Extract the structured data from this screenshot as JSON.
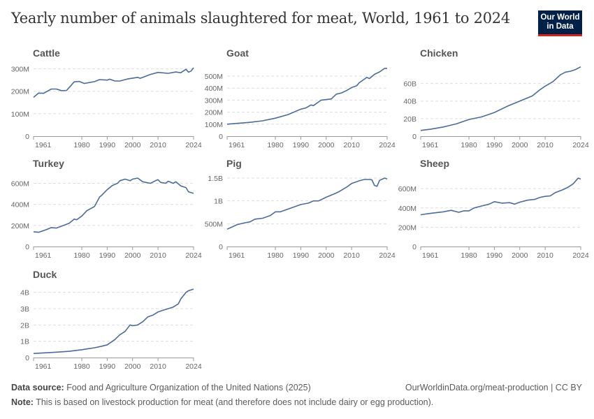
{
  "header": {
    "title": "Yearly number of animals slaughtered for meat, World, 1961 to 2024",
    "logo": "Our World in Data"
  },
  "footer": {
    "source_label": "Data source:",
    "source": "Food and Agriculture Organization of the United Nations (2025)",
    "url": "OurWorldinData.org/meat-production | CC BY",
    "note_label": "Note:",
    "note": "This is based on livestock production for meat (and therefore does not include dairy or egg production)."
  },
  "colors": {
    "line": "#4c6a9c",
    "grid": "#dddddd",
    "text": "#666666"
  },
  "chart_data": [
    {
      "type": "line",
      "title": "Cattle",
      "unit": "million",
      "ylim": [
        0,
        305
      ],
      "yticks": [
        0,
        100,
        200,
        300
      ],
      "ytick_labels": [
        "0",
        "100M",
        "200M",
        "300M"
      ],
      "xticks": [
        1961,
        1980,
        1990,
        2000,
        2010,
        2024
      ],
      "points": [
        [
          1961,
          173
        ],
        [
          1963,
          192
        ],
        [
          1965,
          191
        ],
        [
          1968,
          210
        ],
        [
          1970,
          210
        ],
        [
          1972,
          203
        ],
        [
          1974,
          204
        ],
        [
          1977,
          242
        ],
        [
          1979,
          244
        ],
        [
          1981,
          235
        ],
        [
          1985,
          243
        ],
        [
          1987,
          252
        ],
        [
          1990,
          250
        ],
        [
          1991,
          254
        ],
        [
          1993,
          246
        ],
        [
          1995,
          246
        ],
        [
          1998,
          255
        ],
        [
          2002,
          262
        ],
        [
          2003,
          258
        ],
        [
          2007,
          275
        ],
        [
          2010,
          284
        ],
        [
          2014,
          280
        ],
        [
          2017,
          286
        ],
        [
          2019,
          283
        ],
        [
          2021,
          298
        ],
        [
          2022,
          285
        ],
        [
          2023,
          290
        ],
        [
          2024,
          305
        ]
      ]
    },
    {
      "type": "line",
      "title": "Goat",
      "unit": "million",
      "ylim": [
        0,
        570
      ],
      "yticks": [
        0,
        100,
        200,
        300,
        400,
        500
      ],
      "ytick_labels": [
        "0",
        "100M",
        "200M",
        "300M",
        "400M",
        "500M"
      ],
      "xticks": [
        1961,
        1980,
        1990,
        2000,
        2010,
        2024
      ],
      "points": [
        [
          1961,
          100
        ],
        [
          1970,
          115
        ],
        [
          1975,
          128
        ],
        [
          1980,
          150
        ],
        [
          1985,
          180
        ],
        [
          1990,
          225
        ],
        [
          1992,
          235
        ],
        [
          1994,
          260
        ],
        [
          1995,
          255
        ],
        [
          1998,
          300
        ],
        [
          2000,
          305
        ],
        [
          2002,
          310
        ],
        [
          2004,
          350
        ],
        [
          2006,
          360
        ],
        [
          2008,
          380
        ],
        [
          2010,
          405
        ],
        [
          2012,
          420
        ],
        [
          2013,
          445
        ],
        [
          2016,
          490
        ],
        [
          2017,
          480
        ],
        [
          2019,
          515
        ],
        [
          2021,
          535
        ],
        [
          2023,
          565
        ],
        [
          2024,
          565
        ]
      ]
    },
    {
      "type": "line",
      "title": "Chicken",
      "unit": "billion",
      "ylim": [
        0,
        78
      ],
      "yticks": [
        0,
        20,
        40,
        60
      ],
      "ytick_labels": [
        "0",
        "20B",
        "40B",
        "60B"
      ],
      "xticks": [
        1961,
        1980,
        1990,
        2000,
        2010,
        2024
      ],
      "points": [
        [
          1961,
          6.5
        ],
        [
          1965,
          8
        ],
        [
          1970,
          10.5
        ],
        [
          1975,
          14
        ],
        [
          1980,
          19
        ],
        [
          1985,
          22
        ],
        [
          1990,
          27
        ],
        [
          1995,
          34
        ],
        [
          2000,
          40
        ],
        [
          2005,
          46
        ],
        [
          2008,
          53
        ],
        [
          2010,
          57
        ],
        [
          2013,
          62
        ],
        [
          2016,
          70
        ],
        [
          2018,
          73
        ],
        [
          2020,
          74
        ],
        [
          2022,
          76
        ],
        [
          2024,
          79
        ]
      ]
    },
    {
      "type": "line",
      "title": "Turkey",
      "unit": "million",
      "ylim": [
        0,
        650
      ],
      "yticks": [
        0,
        200,
        400,
        600
      ],
      "ytick_labels": [
        "0",
        "200M",
        "400M",
        "600M"
      ],
      "xticks": [
        1961,
        1980,
        1990,
        2000,
        2010,
        2024
      ],
      "points": [
        [
          1961,
          140
        ],
        [
          1963,
          135
        ],
        [
          1966,
          160
        ],
        [
          1968,
          180
        ],
        [
          1970,
          175
        ],
        [
          1975,
          220
        ],
        [
          1977,
          260
        ],
        [
          1978,
          255
        ],
        [
          1980,
          290
        ],
        [
          1982,
          340
        ],
        [
          1985,
          380
        ],
        [
          1987,
          470
        ],
        [
          1988,
          490
        ],
        [
          1990,
          540
        ],
        [
          1992,
          580
        ],
        [
          1994,
          600
        ],
        [
          1995,
          625
        ],
        [
          1997,
          640
        ],
        [
          1999,
          625
        ],
        [
          2000,
          640
        ],
        [
          2002,
          650
        ],
        [
          2004,
          615
        ],
        [
          2007,
          600
        ],
        [
          2009,
          625
        ],
        [
          2010,
          635
        ],
        [
          2011,
          610
        ],
        [
          2013,
          600
        ],
        [
          2014,
          620
        ],
        [
          2016,
          600
        ],
        [
          2017,
          615
        ],
        [
          2019,
          575
        ],
        [
          2021,
          560
        ],
        [
          2022,
          520
        ],
        [
          2024,
          505
        ]
      ]
    },
    {
      "type": "line",
      "title": "Pig",
      "unit": "billion",
      "ylim": [
        0,
        1.5
      ],
      "yticks": [
        0,
        0.5,
        1,
        1.5
      ],
      "ytick_labels": [
        "0",
        "500M",
        "1B",
        "1.5B"
      ],
      "xticks": [
        1961,
        1980,
        1990,
        2000,
        2010,
        2024
      ],
      "points": [
        [
          1961,
          0.38
        ],
        [
          1965,
          0.48
        ],
        [
          1968,
          0.52
        ],
        [
          1970,
          0.54
        ],
        [
          1972,
          0.6
        ],
        [
          1975,
          0.62
        ],
        [
          1978,
          0.68
        ],
        [
          1980,
          0.76
        ],
        [
          1982,
          0.76
        ],
        [
          1985,
          0.82
        ],
        [
          1988,
          0.88
        ],
        [
          1990,
          0.92
        ],
        [
          1993,
          0.95
        ],
        [
          1995,
          1.0
        ],
        [
          1997,
          1.0
        ],
        [
          2000,
          1.08
        ],
        [
          2003,
          1.15
        ],
        [
          2005,
          1.2
        ],
        [
          2008,
          1.3
        ],
        [
          2010,
          1.38
        ],
        [
          2013,
          1.44
        ],
        [
          2015,
          1.47
        ],
        [
          2017,
          1.47
        ],
        [
          2018,
          1.46
        ],
        [
          2019,
          1.34
        ],
        [
          2020,
          1.32
        ],
        [
          2021,
          1.45
        ],
        [
          2023,
          1.5
        ],
        [
          2024,
          1.48
        ]
      ]
    },
    {
      "type": "line",
      "title": "Sheep",
      "unit": "million",
      "ylim": [
        0,
        710
      ],
      "yticks": [
        0,
        200,
        400,
        600
      ],
      "ytick_labels": [
        "0",
        "200M",
        "400M",
        "600M"
      ],
      "xticks": [
        1961,
        1980,
        1990,
        2000,
        2010,
        2024
      ],
      "points": [
        [
          1961,
          330
        ],
        [
          1965,
          345
        ],
        [
          1970,
          360
        ],
        [
          1973,
          375
        ],
        [
          1976,
          355
        ],
        [
          1978,
          370
        ],
        [
          1980,
          370
        ],
        [
          1982,
          400
        ],
        [
          1985,
          420
        ],
        [
          1988,
          440
        ],
        [
          1990,
          465
        ],
        [
          1993,
          450
        ],
        [
          1996,
          455
        ],
        [
          1998,
          440
        ],
        [
          2000,
          460
        ],
        [
          2003,
          480
        ],
        [
          2006,
          490
        ],
        [
          2008,
          510
        ],
        [
          2010,
          520
        ],
        [
          2012,
          525
        ],
        [
          2014,
          560
        ],
        [
          2017,
          590
        ],
        [
          2019,
          615
        ],
        [
          2021,
          650
        ],
        [
          2023,
          710
        ],
        [
          2024,
          700
        ]
      ]
    },
    {
      "type": "line",
      "title": "Duck",
      "unit": "billion",
      "ylim": [
        0,
        4.2
      ],
      "yticks": [
        0,
        1,
        2,
        3,
        4
      ],
      "ytick_labels": [
        "0",
        "1B",
        "2B",
        "3B",
        "4B"
      ],
      "xticks": [
        1961,
        1980,
        1990,
        2000,
        2010,
        2024
      ],
      "points": [
        [
          1961,
          0.25
        ],
        [
          1970,
          0.33
        ],
        [
          1975,
          0.38
        ],
        [
          1980,
          0.48
        ],
        [
          1985,
          0.6
        ],
        [
          1988,
          0.7
        ],
        [
          1990,
          0.78
        ],
        [
          1993,
          1.1
        ],
        [
          1995,
          1.4
        ],
        [
          1997,
          1.6
        ],
        [
          1999,
          2.0
        ],
        [
          2000,
          1.95
        ],
        [
          2002,
          2.0
        ],
        [
          2004,
          2.2
        ],
        [
          2006,
          2.5
        ],
        [
          2008,
          2.6
        ],
        [
          2010,
          2.8
        ],
        [
          2012,
          2.9
        ],
        [
          2014,
          3.0
        ],
        [
          2016,
          3.1
        ],
        [
          2018,
          3.3
        ],
        [
          2019,
          3.6
        ],
        [
          2021,
          4.0
        ],
        [
          2022,
          4.1
        ],
        [
          2024,
          4.2
        ]
      ]
    }
  ]
}
